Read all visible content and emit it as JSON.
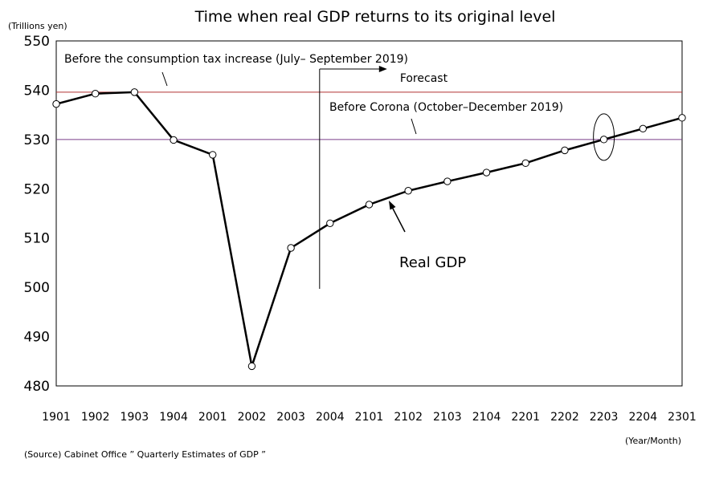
{
  "chart_data": {
    "type": "line",
    "title": "Time when real GDP returns to its original level",
    "ylabel": "(Trillions yen)",
    "xlabel": "(Year/Month)",
    "source": "(Source) Cabinet Office ” Quarterly Estimates of GDP ”",
    "categories": [
      "1901",
      "1902",
      "1903",
      "1904",
      "2001",
      "2002",
      "2003",
      "2004",
      "2101",
      "2102",
      "2103",
      "2104",
      "2201",
      "2202",
      "2203",
      "2204",
      "2301"
    ],
    "series": [
      {
        "name": "Real GDP",
        "values": [
          537.2,
          539.3,
          539.6,
          529.9,
          526.9,
          484.0,
          508.0,
          513.0,
          516.8,
          519.6,
          521.5,
          523.3,
          525.2,
          527.8,
          530.0,
          532.2,
          534.4
        ]
      }
    ],
    "ylim": [
      480,
      550
    ],
    "yticks": [
      480,
      490,
      500,
      510,
      520,
      530,
      540,
      550
    ],
    "grid": false,
    "reference_lines": [
      {
        "label": "Before the consumption tax increase (July– September 2019)",
        "value": 539.6,
        "color": "#b03030"
      },
      {
        "label": "Before Corona (October–December 2019)",
        "value": 530.0,
        "color": "#7a3e8a"
      }
    ],
    "forecast": {
      "label": "Forecast",
      "start_category": "2004"
    },
    "series_label": "Real GDP",
    "highlight_category": "2203",
    "colors": {
      "line": "#000000",
      "marker_fill": "#ffffff",
      "axis": "#000000"
    }
  }
}
